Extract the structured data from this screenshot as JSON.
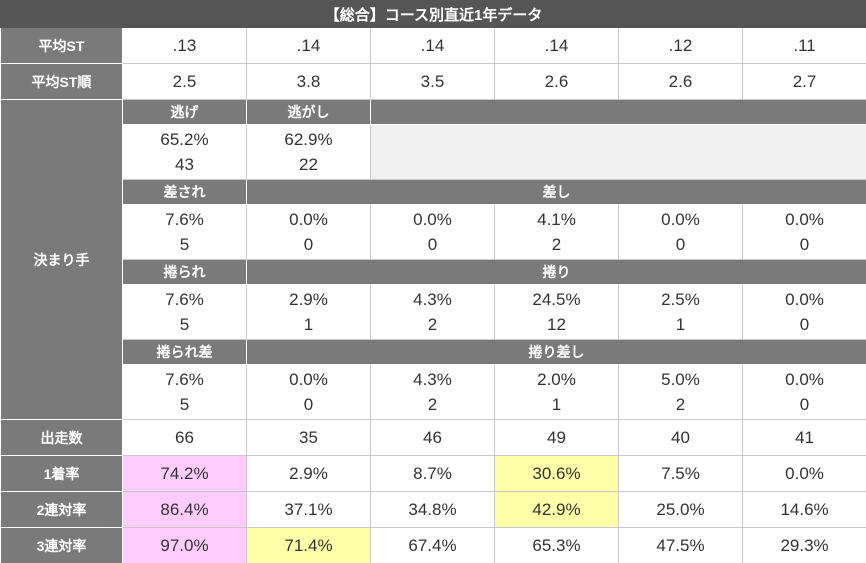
{
  "title": "【総合】コース別直近1年データ",
  "rows": [
    {
      "label": "平均ST",
      "values": [
        ".13",
        ".14",
        ".14",
        ".14",
        ".12",
        ".11"
      ]
    },
    {
      "label": "平均ST順",
      "values": [
        "2.5",
        "3.8",
        "3.5",
        "2.6",
        "2.6",
        "2.7"
      ]
    }
  ],
  "kimarite": {
    "label": "決まり手",
    "groups": [
      {
        "headers": [
          "逃げ",
          "逃がし"
        ],
        "rates": [
          "65.2%",
          "62.9%"
        ],
        "counts": [
          "43",
          "22"
        ]
      },
      {
        "headers": [
          "差され",
          "差し"
        ],
        "rates": [
          "7.6%",
          "0.0%",
          "0.0%",
          "4.1%",
          "0.0%",
          "0.0%"
        ],
        "counts": [
          "5",
          "0",
          "0",
          "2",
          "0",
          "0"
        ]
      },
      {
        "headers": [
          "捲られ",
          "捲り"
        ],
        "rates": [
          "7.6%",
          "2.9%",
          "4.3%",
          "24.5%",
          "2.5%",
          "0.0%"
        ],
        "counts": [
          "5",
          "1",
          "2",
          "12",
          "1",
          "0"
        ]
      },
      {
        "headers": [
          "捲られ差",
          "捲り差し"
        ],
        "rates": [
          "7.6%",
          "0.0%",
          "4.3%",
          "2.0%",
          "5.0%",
          "0.0%"
        ],
        "counts": [
          "5",
          "0",
          "2",
          "1",
          "2",
          "0"
        ]
      }
    ]
  },
  "stats": [
    {
      "label": "出走数",
      "values": [
        "66",
        "35",
        "46",
        "49",
        "40",
        "41"
      ],
      "highlights": [
        null,
        null,
        null,
        null,
        null,
        null
      ]
    },
    {
      "label": "1着率",
      "values": [
        "74.2%",
        "2.9%",
        "8.7%",
        "30.6%",
        "7.5%",
        "0.0%"
      ],
      "highlights": [
        "#ffccff",
        null,
        null,
        "#ffffaa",
        null,
        null
      ]
    },
    {
      "label": "2連対率",
      "values": [
        "86.4%",
        "37.1%",
        "34.8%",
        "42.9%",
        "25.0%",
        "14.6%"
      ],
      "highlights": [
        "#ffccff",
        null,
        null,
        "#ffffaa",
        null,
        null
      ]
    },
    {
      "label": "3連対率",
      "values": [
        "97.0%",
        "71.4%",
        "67.4%",
        "65.3%",
        "47.5%",
        "29.3%"
      ],
      "highlights": [
        "#ffccff",
        "#ffffaa",
        null,
        null,
        null,
        null
      ]
    }
  ]
}
